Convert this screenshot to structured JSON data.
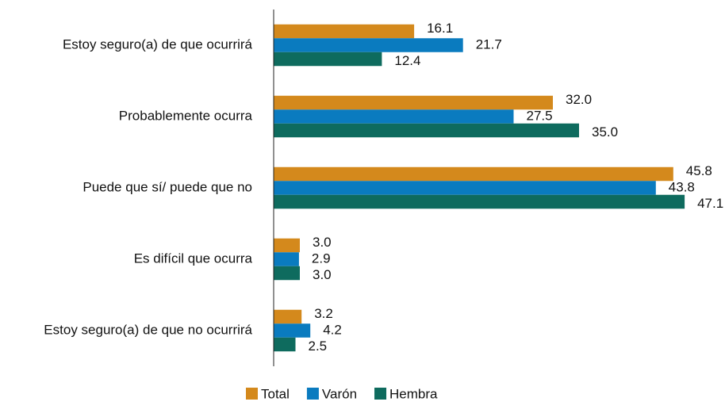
{
  "chart_data": {
    "type": "hbar",
    "categories": [
      "Estoy seguro(a) de que ocurrirá",
      "Probablemente ocurra",
      "Puede que sí/ puede que no",
      "Es difícil que ocurra",
      "Estoy seguro(a) de que no ocurrirá"
    ],
    "series": [
      {
        "name": "Total",
        "color": "#d4891c",
        "values": [
          16.1,
          32,
          45.8,
          3,
          3.2
        ],
        "value_labels": [
          "16.1",
          "32.0",
          "45.8",
          "3.0",
          "3.2"
        ]
      },
      {
        "name": "Varón",
        "color": "#0a7bbf",
        "values": [
          21.7,
          27.5,
          43.8,
          2.9,
          4.2
        ],
        "value_labels": [
          "21.7",
          "27.5",
          "43.8",
          "2.9",
          "4.2"
        ]
      },
      {
        "name": "Hembra",
        "color": "#0e6b5e",
        "values": [
          12.4,
          35,
          47.1,
          3,
          2.5
        ],
        "value_labels": [
          "12.4",
          "35.0",
          "47.1",
          "3.0",
          "2.5"
        ]
      }
    ],
    "xlim": [
      0,
      50
    ],
    "legend": "bottom"
  }
}
